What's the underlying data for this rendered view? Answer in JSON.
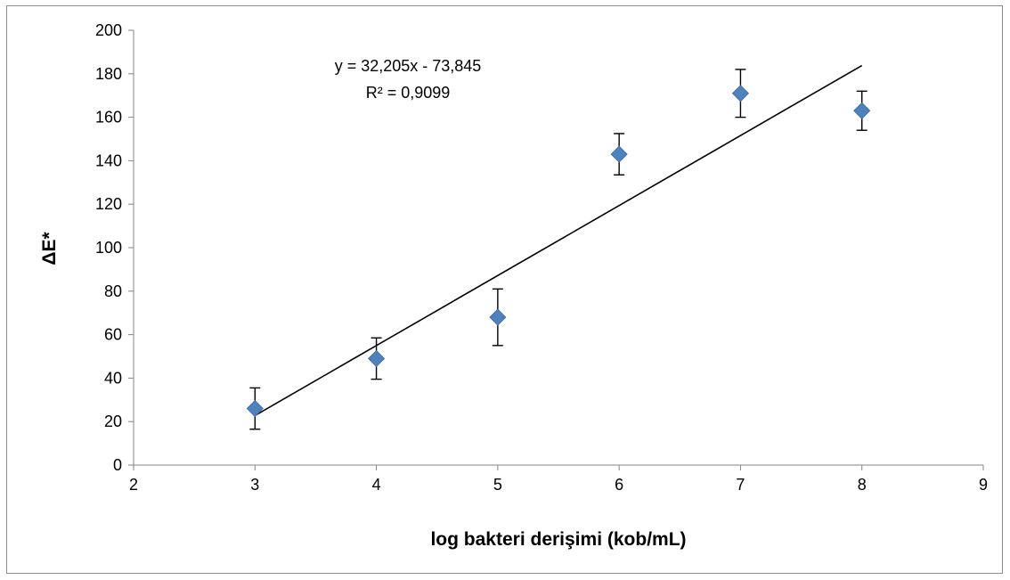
{
  "chart_data": {
    "type": "scatter",
    "xlabel": "log bakteri derişimi (kob/mL)",
    "ylabel": "ΔE*",
    "xlim": [
      2,
      9
    ],
    "ylim": [
      0,
      200
    ],
    "x_ticks": [
      2,
      3,
      4,
      5,
      6,
      7,
      8,
      9
    ],
    "y_ticks": [
      0,
      20,
      40,
      60,
      80,
      100,
      120,
      140,
      160,
      180,
      200
    ],
    "grid": false,
    "legend": "none",
    "series": [
      {
        "x": [
          3,
          4,
          5,
          6,
          7,
          8
        ],
        "y": [
          26,
          49,
          68,
          143,
          171,
          163
        ],
        "error": [
          9.5,
          9.5,
          13,
          9.5,
          11,
          9
        ],
        "marker": "diamond",
        "color": "#4f81bd"
      }
    ],
    "trendline": {
      "type": "linear",
      "slope": 32.205,
      "intercept": -73.845,
      "x_range": [
        3,
        8
      ],
      "color": "#000000",
      "equation": "y = 32,205x - 73,845",
      "r_squared": "R² = 0,9099"
    }
  }
}
